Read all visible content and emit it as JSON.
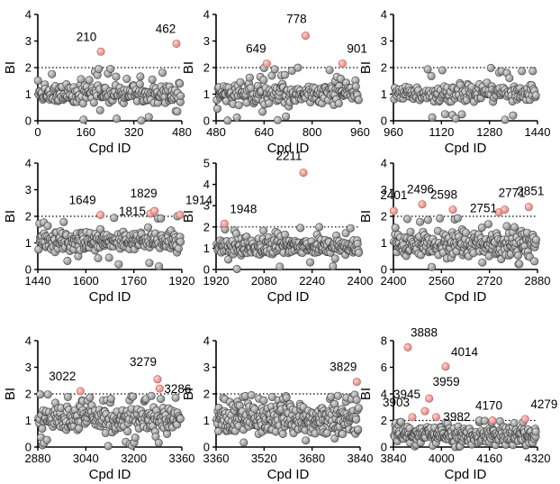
{
  "figure": {
    "colors": {
      "normal": "#8a8a8a",
      "normal_highlight": "#dcdcdc",
      "outlier": "#e8847e",
      "outlier_highlight": "#fbd3cf",
      "point_edge": "#3a3a3a"
    }
  },
  "chart_data": [
    {
      "type": "scatter",
      "xlabel": "Cpd ID",
      "ylabel": "BI",
      "xlim": [
        0,
        480
      ],
      "ylim": [
        0,
        4
      ],
      "xticks": [
        0,
        160,
        320,
        480
      ],
      "xtick_labels": [
        "0",
        "160",
        "320",
        "480"
      ],
      "yticks": [
        0,
        1,
        2,
        3,
        4
      ],
      "ytick_labels": [
        "0",
        "1",
        "2",
        "3",
        "4"
      ],
      "threshold": 2,
      "grid": false,
      "normal_points": {
        "n": 220,
        "x_range": [
          0,
          478
        ],
        "y_typical": [
          0.55,
          1.45
        ],
        "x_seed": 11,
        "y_seed": 12
      },
      "outliers": [
        {
          "x": 210,
          "y": 2.6,
          "label": "210"
        },
        {
          "x": 462,
          "y": 2.9,
          "label": "462"
        }
      ]
    },
    {
      "type": "scatter",
      "xlabel": "Cpd ID",
      "ylabel": "BI",
      "xlim": [
        480,
        960
      ],
      "ylim": [
        0,
        4
      ],
      "xticks": [
        480,
        640,
        800,
        960
      ],
      "xtick_labels": [
        "480",
        "640",
        "800",
        "960"
      ],
      "yticks": [
        0,
        1,
        2,
        3,
        4
      ],
      "ytick_labels": [
        "0",
        "1",
        "2",
        "3",
        "4"
      ],
      "threshold": 2,
      "grid": false,
      "normal_points": {
        "n": 220,
        "x_range": [
          482,
          956
        ],
        "y_typical": [
          0.55,
          1.45
        ],
        "x_seed": 21,
        "y_seed": 22
      },
      "outliers": [
        {
          "x": 649,
          "y": 2.15,
          "label": "649"
        },
        {
          "x": 778,
          "y": 3.2,
          "label": "778"
        },
        {
          "x": 901,
          "y": 2.15,
          "label": "901"
        }
      ]
    },
    {
      "type": "scatter",
      "xlabel": "Cpd ID",
      "ylabel": "BI",
      "xlim": [
        960,
        1440
      ],
      "ylim": [
        0,
        4
      ],
      "xticks": [
        960,
        1120,
        1280,
        1440
      ],
      "xtick_labels": [
        "960",
        "1120",
        "1280",
        "1440"
      ],
      "yticks": [
        0,
        1,
        2,
        3,
        4
      ],
      "ytick_labels": [
        "0",
        "1",
        "2",
        "3",
        "4"
      ],
      "threshold": 2,
      "grid": false,
      "normal_points": {
        "n": 200,
        "x_range": [
          962,
          1436
        ],
        "y_typical": [
          0.65,
          1.4
        ],
        "x_seed": 31,
        "y_seed": 32
      },
      "outliers": []
    },
    {
      "type": "scatter",
      "xlabel": "Cpd ID",
      "ylabel": "BI",
      "xlim": [
        1440,
        1920
      ],
      "ylim": [
        0,
        4
      ],
      "xticks": [
        1440,
        1600,
        1760,
        1920
      ],
      "xtick_labels": [
        "1440",
        "1600",
        "1760",
        "1920"
      ],
      "yticks": [
        0,
        1,
        2,
        3,
        4
      ],
      "ytick_labels": [
        "0",
        "1",
        "2",
        "3",
        "4"
      ],
      "threshold": 2,
      "grid": false,
      "normal_points": {
        "n": 260,
        "x_range": [
          1442,
          1916
        ],
        "y_typical": [
          0.6,
          1.5
        ],
        "x_seed": 41,
        "y_seed": 42
      },
      "outliers": [
        {
          "x": 1649,
          "y": 2.05,
          "label": "1649"
        },
        {
          "x": 1815,
          "y": 2.1,
          "label": "1815"
        },
        {
          "x": 1829,
          "y": 2.2,
          "label": "1829"
        },
        {
          "x": 1914,
          "y": 2.05,
          "label": "1914"
        }
      ]
    },
    {
      "type": "scatter",
      "xlabel": "Cpd ID",
      "ylabel": "BI",
      "xlim": [
        1920,
        2400
      ],
      "ylim": [
        0,
        5
      ],
      "xticks": [
        1920,
        2080,
        2240,
        2400
      ],
      "xtick_labels": [
        "1920",
        "2080",
        "2240",
        "2400"
      ],
      "yticks": [
        0,
        1,
        2,
        3,
        4,
        5
      ],
      "ytick_labels": [
        "0",
        "1",
        "2",
        "3",
        "4",
        "5"
      ],
      "threshold": 2,
      "grid": false,
      "normal_points": {
        "n": 260,
        "x_range": [
          1922,
          2396
        ],
        "y_typical": [
          0.65,
          1.5
        ],
        "x_seed": 51,
        "y_seed": 52
      },
      "outliers": [
        {
          "x": 1948,
          "y": 2.15,
          "label": "1948"
        },
        {
          "x": 2211,
          "y": 4.55,
          "label": "2211"
        }
      ]
    },
    {
      "type": "scatter",
      "xlabel": "Cpd ID",
      "ylabel": "BI",
      "xlim": [
        2400,
        2880
      ],
      "ylim": [
        0,
        4
      ],
      "xticks": [
        2400,
        2560,
        2720,
        2880
      ],
      "xtick_labels": [
        "2400",
        "2560",
        "2720",
        "2880"
      ],
      "yticks": [
        0,
        1,
        2,
        3,
        4
      ],
      "ytick_labels": [
        "0",
        "1",
        "2",
        "3",
        "4"
      ],
      "threshold": 2,
      "grid": false,
      "normal_points": {
        "n": 260,
        "x_range": [
          2402,
          2876
        ],
        "y_typical": [
          0.4,
          1.5
        ],
        "x_seed": 61,
        "y_seed": 62
      },
      "outliers": [
        {
          "x": 2401,
          "y": 2.2,
          "label": "2401"
        },
        {
          "x": 2496,
          "y": 2.45,
          "label": "2496"
        },
        {
          "x": 2598,
          "y": 2.25,
          "label": "2598"
        },
        {
          "x": 2751,
          "y": 2.15,
          "label": "2751"
        },
        {
          "x": 2771,
          "y": 2.25,
          "label": "2771"
        },
        {
          "x": 2851,
          "y": 2.35,
          "label": "2851"
        }
      ]
    },
    {
      "type": "scatter",
      "xlabel": "Cpd ID",
      "ylabel": "BI",
      "xlim": [
        2880,
        3360
      ],
      "ylim": [
        0,
        4
      ],
      "xticks": [
        2880,
        3040,
        3200,
        3360
      ],
      "xtick_labels": [
        "2880",
        "3040",
        "3200",
        "3360"
      ],
      "yticks": [
        0,
        1,
        2,
        3,
        4
      ],
      "ytick_labels": [
        "0",
        "1",
        "2",
        "3",
        "4"
      ],
      "threshold": 2,
      "grid": false,
      "normal_points": {
        "n": 260,
        "x_range": [
          2882,
          3356
        ],
        "y_typical": [
          0.5,
          1.6
        ],
        "x_seed": 71,
        "y_seed": 72
      },
      "outliers": [
        {
          "x": 3022,
          "y": 2.1,
          "label": "3022"
        },
        {
          "x": 3279,
          "y": 2.55,
          "label": "3279"
        },
        {
          "x": 3286,
          "y": 2.2,
          "label": "3286"
        }
      ]
    },
    {
      "type": "scatter",
      "xlabel": "Cpd ID",
      "ylabel": "BI",
      "xlim": [
        3360,
        3840
      ],
      "ylim": [
        0,
        4
      ],
      "xticks": [
        3360,
        3520,
        3680,
        3840
      ],
      "xtick_labels": [
        "3360",
        "3520",
        "3680",
        "3840"
      ],
      "yticks": [
        0,
        1,
        2,
        3,
        4
      ],
      "ytick_labels": [
        "0",
        "1",
        "2",
        "3",
        "4"
      ],
      "threshold": 2,
      "grid": false,
      "normal_points": {
        "n": 300,
        "x_range": [
          3362,
          3836
        ],
        "y_typical": [
          0.4,
          1.7
        ],
        "x_seed": 81,
        "y_seed": 82
      },
      "outliers": [
        {
          "x": 3829,
          "y": 2.45,
          "label": "3829"
        }
      ]
    },
    {
      "type": "scatter",
      "xlabel": "Cpd ID",
      "ylabel": "BI",
      "xlim": [
        3840,
        4320
      ],
      "ylim": [
        0,
        8
      ],
      "xticks": [
        3840,
        4000,
        4160,
        4320
      ],
      "xtick_labels": [
        "3840",
        "4000",
        "4160",
        "4320"
      ],
      "yticks": [
        0,
        2,
        4,
        6,
        8
      ],
      "ytick_labels": [
        "0",
        "2",
        "4",
        "6",
        "8"
      ],
      "threshold": 2,
      "grid": false,
      "normal_points": {
        "n": 280,
        "x_range": [
          3842,
          4316
        ],
        "y_typical": [
          0.2,
          1.7
        ],
        "x_seed": 91,
        "y_seed": 92
      },
      "outliers": [
        {
          "x": 3888,
          "y": 7.5,
          "label": "3888"
        },
        {
          "x": 3903,
          "y": 2.25,
          "label": "3903"
        },
        {
          "x": 3945,
          "y": 2.7,
          "label": "3945"
        },
        {
          "x": 3959,
          "y": 3.65,
          "label": "3959"
        },
        {
          "x": 3982,
          "y": 2.25,
          "label": "3982"
        },
        {
          "x": 4014,
          "y": 6.05,
          "label": "4014"
        },
        {
          "x": 4170,
          "y": 2.0,
          "label": "4170"
        },
        {
          "x": 4279,
          "y": 2.1,
          "label": "4279"
        }
      ]
    }
  ]
}
